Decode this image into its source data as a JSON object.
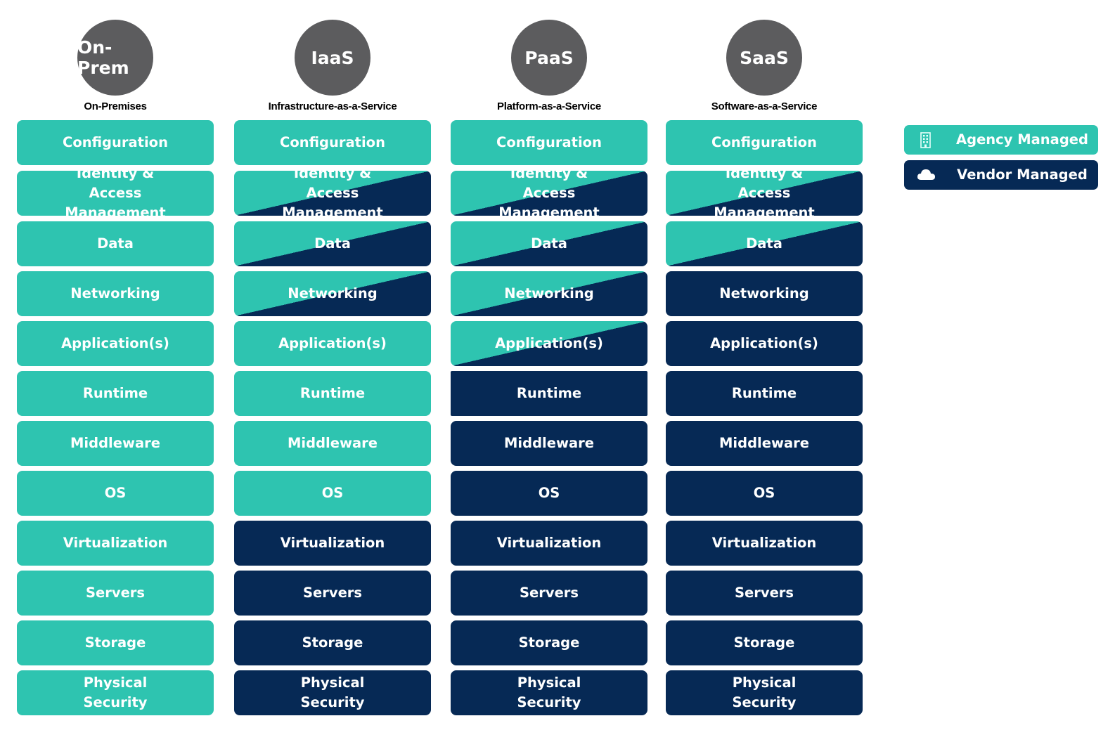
{
  "colors": {
    "agency": "#2ec4b0",
    "vendor": "#062955",
    "circle": "#5c5c5e"
  },
  "models": [
    {
      "abbr": "On-Prem",
      "name": "On-Premises",
      "layers": [
        {
          "label": "Configuration",
          "managed": "agency"
        },
        {
          "label": "Identity & Access Management",
          "managed": "agency"
        },
        {
          "label": "Data",
          "managed": "agency"
        },
        {
          "label": "Networking",
          "managed": "agency"
        },
        {
          "label": "Application(s)",
          "managed": "agency"
        },
        {
          "label": "Runtime",
          "managed": "agency"
        },
        {
          "label": "Middleware",
          "managed": "agency"
        },
        {
          "label": "OS",
          "managed": "agency"
        },
        {
          "label": "Virtualization",
          "managed": "agency"
        },
        {
          "label": "Servers",
          "managed": "agency"
        },
        {
          "label": "Storage",
          "managed": "agency"
        },
        {
          "label": "Physical Security",
          "managed": "agency"
        }
      ]
    },
    {
      "abbr": "IaaS",
      "name": "Infrastructure-as-a-Service",
      "layers": [
        {
          "label": "Configuration",
          "managed": "agency"
        },
        {
          "label": "Identity & Access Management",
          "managed": "shared"
        },
        {
          "label": "Data",
          "managed": "shared"
        },
        {
          "label": "Networking",
          "managed": "shared"
        },
        {
          "label": "Application(s)",
          "managed": "agency"
        },
        {
          "label": "Runtime",
          "managed": "agency"
        },
        {
          "label": "Middleware",
          "managed": "agency"
        },
        {
          "label": "OS",
          "managed": "agency"
        },
        {
          "label": "Virtualization",
          "managed": "vendor"
        },
        {
          "label": "Servers",
          "managed": "vendor"
        },
        {
          "label": "Storage",
          "managed": "vendor"
        },
        {
          "label": "Physical Security",
          "managed": "vendor"
        }
      ]
    },
    {
      "abbr": "PaaS",
      "name": "Platform-as-a-Service",
      "layers": [
        {
          "label": "Configuration",
          "managed": "agency"
        },
        {
          "label": "Identity & Access Management",
          "managed": "shared"
        },
        {
          "label": "Data",
          "managed": "shared"
        },
        {
          "label": "Networking",
          "managed": "shared"
        },
        {
          "label": "Application(s)",
          "managed": "shared"
        },
        {
          "label": "Runtime",
          "managed": "vendor"
        },
        {
          "label": "Middleware",
          "managed": "vendor"
        },
        {
          "label": "OS",
          "managed": "vendor"
        },
        {
          "label": "Virtualization",
          "managed": "vendor"
        },
        {
          "label": "Servers",
          "managed": "vendor"
        },
        {
          "label": "Storage",
          "managed": "vendor"
        },
        {
          "label": "Physical Security",
          "managed": "vendor"
        }
      ]
    },
    {
      "abbr": "SaaS",
      "name": "Software-as-a-Service",
      "layers": [
        {
          "label": "Configuration",
          "managed": "agency"
        },
        {
          "label": "Identity & Access Management",
          "managed": "shared"
        },
        {
          "label": "Data",
          "managed": "shared"
        },
        {
          "label": "Networking",
          "managed": "vendor"
        },
        {
          "label": "Application(s)",
          "managed": "vendor"
        },
        {
          "label": "Runtime",
          "managed": "vendor"
        },
        {
          "label": "Middleware",
          "managed": "vendor"
        },
        {
          "label": "OS",
          "managed": "vendor"
        },
        {
          "label": "Virtualization",
          "managed": "vendor"
        },
        {
          "label": "Servers",
          "managed": "vendor"
        },
        {
          "label": "Storage",
          "managed": "vendor"
        },
        {
          "label": "Physical Security",
          "managed": "vendor"
        }
      ]
    }
  ],
  "legend": {
    "agency": {
      "label": "Agency Managed",
      "icon": "building-icon"
    },
    "vendor": {
      "label": "Vendor Managed",
      "icon": "cloud-icon"
    }
  }
}
